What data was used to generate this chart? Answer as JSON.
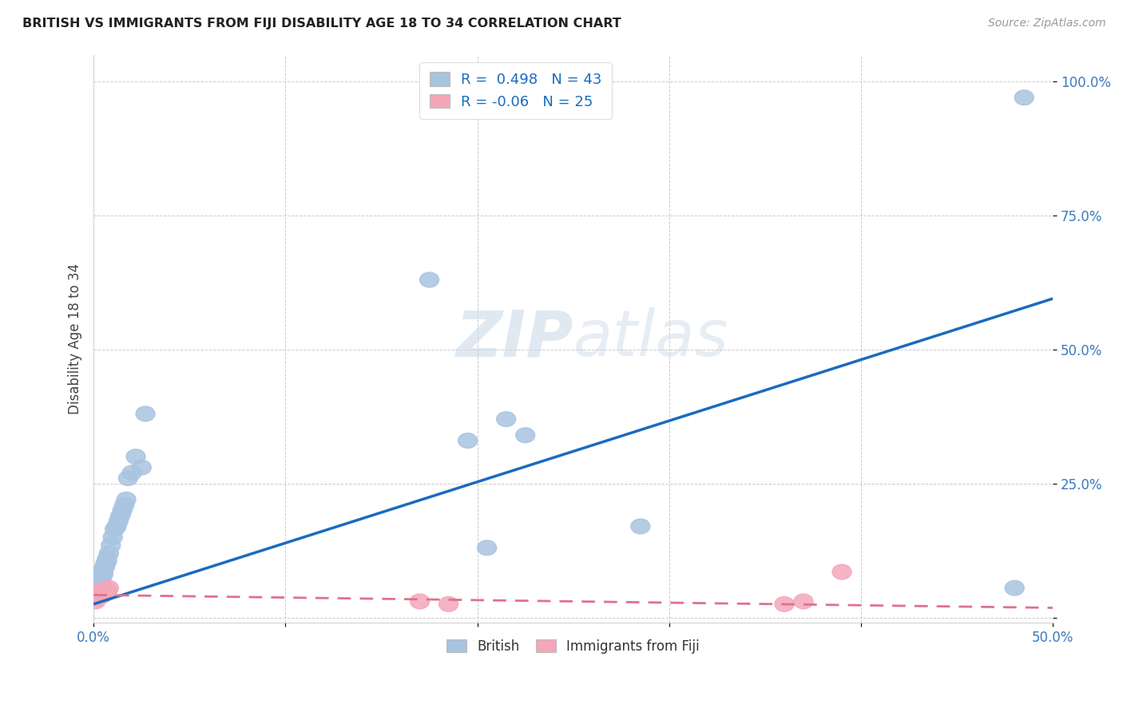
{
  "title": "BRITISH VS IMMIGRANTS FROM FIJI DISABILITY AGE 18 TO 34 CORRELATION CHART",
  "source": "Source: ZipAtlas.com",
  "ylabel": "Disability Age 18 to 34",
  "xlim": [
    0.0,
    0.5
  ],
  "ylim": [
    -0.01,
    1.05
  ],
  "xticks": [
    0.0,
    0.1,
    0.2,
    0.3,
    0.4,
    0.5
  ],
  "yticks": [
    0.0,
    0.25,
    0.5,
    0.75,
    1.0
  ],
  "ytick_labels": [
    "",
    "25.0%",
    "50.0%",
    "75.0%",
    "100.0%"
  ],
  "xtick_labels": [
    "0.0%",
    "",
    "",
    "",
    "",
    "50.0%"
  ],
  "british_color": "#a8c4e0",
  "fiji_color": "#f4a7b9",
  "blue_line_color": "#1a6bbf",
  "pink_line_color": "#e07090",
  "R_british": 0.498,
  "N_british": 43,
  "R_fiji": -0.06,
  "N_fiji": 25,
  "watermark": "ZIPatlas",
  "british_x": [
    0.001,
    0.001,
    0.001,
    0.002,
    0.002,
    0.002,
    0.002,
    0.003,
    0.003,
    0.003,
    0.004,
    0.004,
    0.004,
    0.005,
    0.005,
    0.005,
    0.006,
    0.006,
    0.007,
    0.007,
    0.008,
    0.009,
    0.01,
    0.011,
    0.012,
    0.013,
    0.014,
    0.015,
    0.016,
    0.017,
    0.018,
    0.02,
    0.022,
    0.025,
    0.027,
    0.175,
    0.195,
    0.205,
    0.215,
    0.225,
    0.285,
    0.48,
    0.485
  ],
  "british_y": [
    0.045,
    0.05,
    0.055,
    0.05,
    0.06,
    0.065,
    0.07,
    0.06,
    0.065,
    0.07,
    0.07,
    0.075,
    0.08,
    0.08,
    0.085,
    0.09,
    0.095,
    0.1,
    0.105,
    0.11,
    0.12,
    0.135,
    0.15,
    0.165,
    0.17,
    0.18,
    0.19,
    0.2,
    0.21,
    0.22,
    0.26,
    0.27,
    0.3,
    0.28,
    0.38,
    0.63,
    0.33,
    0.13,
    0.37,
    0.34,
    0.17,
    0.055,
    0.97
  ],
  "fiji_x": [
    0.001,
    0.001,
    0.001,
    0.001,
    0.002,
    0.002,
    0.002,
    0.003,
    0.003,
    0.003,
    0.004,
    0.004,
    0.004,
    0.005,
    0.005,
    0.006,
    0.006,
    0.007,
    0.007,
    0.008,
    0.17,
    0.185,
    0.36,
    0.37,
    0.39
  ],
  "fiji_y": [
    0.03,
    0.035,
    0.04,
    0.045,
    0.035,
    0.04,
    0.045,
    0.038,
    0.042,
    0.048,
    0.04,
    0.045,
    0.05,
    0.042,
    0.048,
    0.045,
    0.05,
    0.048,
    0.052,
    0.055,
    0.03,
    0.025,
    0.025,
    0.03,
    0.085
  ],
  "blue_line_x": [
    0.0,
    0.5
  ],
  "blue_line_y": [
    0.025,
    0.595
  ],
  "pink_line_x": [
    0.0,
    0.5
  ],
  "pink_line_y": [
    0.042,
    0.018
  ]
}
